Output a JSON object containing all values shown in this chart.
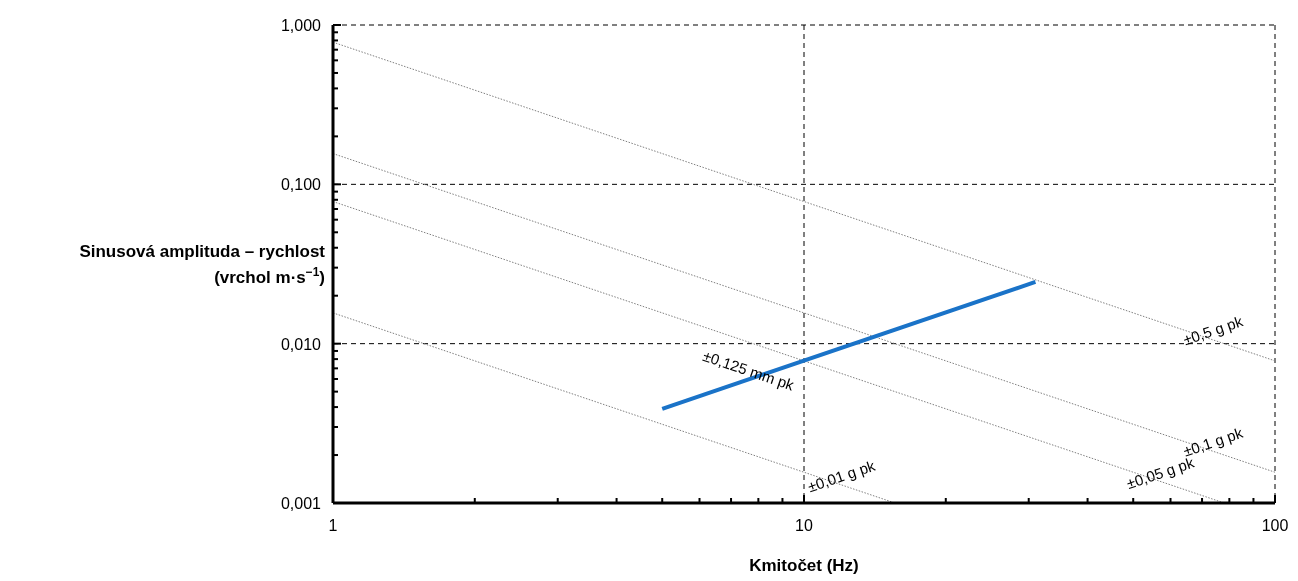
{
  "chart_data": {
    "type": "line",
    "xlabel": "Kmitočet (Hz)",
    "ylabel": "Sinusová amplituda – rychlost (vrchol m·s$^{−1}$)",
    "log": "xy",
    "grid": true,
    "xlim": [
      1,
      100
    ],
    "ylim": [
      0.001,
      1
    ],
    "xticks": [
      1,
      {
        "value": 2,
        "label": null
      },
      {
        "value": 3,
        "label": null
      },
      {
        "value": 4,
        "label": null
      },
      {
        "value": 5,
        "label": null
      },
      {
        "value": 6,
        "label": null
      },
      {
        "value": 7,
        "label": null
      },
      {
        "value": 8,
        "label": null
      },
      {
        "value": 9,
        "label": null
      },
      10,
      {
        "value": 20,
        "label": null
      },
      {
        "value": 30,
        "label": null
      },
      {
        "value": 40,
        "label": null
      },
      {
        "value": 50,
        "label": null
      },
      {
        "value": 60,
        "label": null
      },
      {
        "value": 70,
        "label": null
      },
      {
        "value": 80,
        "label": null
      },
      {
        "value": 90,
        "label": null
      },
      100
    ],
    "yticks": [
      {
        "value": 0.001,
        "label": "0,001"
      },
      {
        "value": 0.002,
        "label": null
      },
      {
        "value": 0.003,
        "label": null
      },
      {
        "value": 0.004,
        "label": null
      },
      {
        "value": 0.005,
        "label": null
      },
      {
        "value": 0.006,
        "label": null
      },
      {
        "value": 0.007,
        "label": null
      },
      {
        "value": 0.008,
        "label": null
      },
      {
        "value": 0.009,
        "label": null
      },
      {
        "value": 0.01,
        "label": "0,010"
      },
      {
        "value": 0.02,
        "label": null
      },
      {
        "value": 0.03,
        "label": null
      },
      {
        "value": 0.04,
        "label": null
      },
      {
        "value": 0.05,
        "label": null
      },
      {
        "value": 0.06,
        "label": null
      },
      {
        "value": 0.07,
        "label": null
      },
      {
        "value": 0.08,
        "label": null
      },
      {
        "value": 0.09,
        "label": null
      },
      {
        "value": 0.1,
        "label": "0,100"
      },
      {
        "value": 0.2,
        "label": null
      },
      {
        "value": 0.3,
        "label": null
      },
      {
        "value": 0.4,
        "label": null
      },
      {
        "value": 0.5,
        "label": null
      },
      {
        "value": 0.6,
        "label": null
      },
      {
        "value": 0.7,
        "label": null
      },
      {
        "value": 0.8,
        "label": null
      },
      {
        "value": 0.9,
        "label": null
      },
      {
        "value": 1,
        "label": "1,000"
      }
    ],
    "series": [
      {
        "color": "#808080",
        "line_style": "dotted",
        "x": [
          1,
          100
        ],
        "values": [
          0.78,
          0.0078
        ]
      },
      {
        "color": "#808080",
        "line_style": "dotted",
        "x": [
          1,
          100
        ],
        "values": [
          0.156,
          0.00156
        ]
      },
      {
        "color": "#808080",
        "line_style": "dotted",
        "x": [
          1,
          78
        ],
        "values": [
          0.078,
          0.001
        ]
      },
      {
        "color": "#808080",
        "line_style": "dotted",
        "x": [
          1,
          15.6
        ],
        "values": [
          0.0156,
          0.001
        ]
      },
      {
        "color": "#1a73c8",
        "line_style": "solid",
        "x": [
          5,
          31
        ],
        "values": [
          0.0039,
          0.0244
        ]
      }
    ],
    "annotations": [
      {
        "text": "±0,5 g pk",
        "x": 75,
        "y": 0.0105
      },
      {
        "text": "±0,1 g pk",
        "x": 75,
        "y": 0.0021
      },
      {
        "text": "±0,05 g pk",
        "x": 58,
        "y": 0.00134
      },
      {
        "text": "±0,01 g pk",
        "x": 12.2,
        "y": 0.00128
      },
      {
        "text": "±0,125 mm pk",
        "x": 7.5,
        "y": 0.0059
      }
    ]
  }
}
